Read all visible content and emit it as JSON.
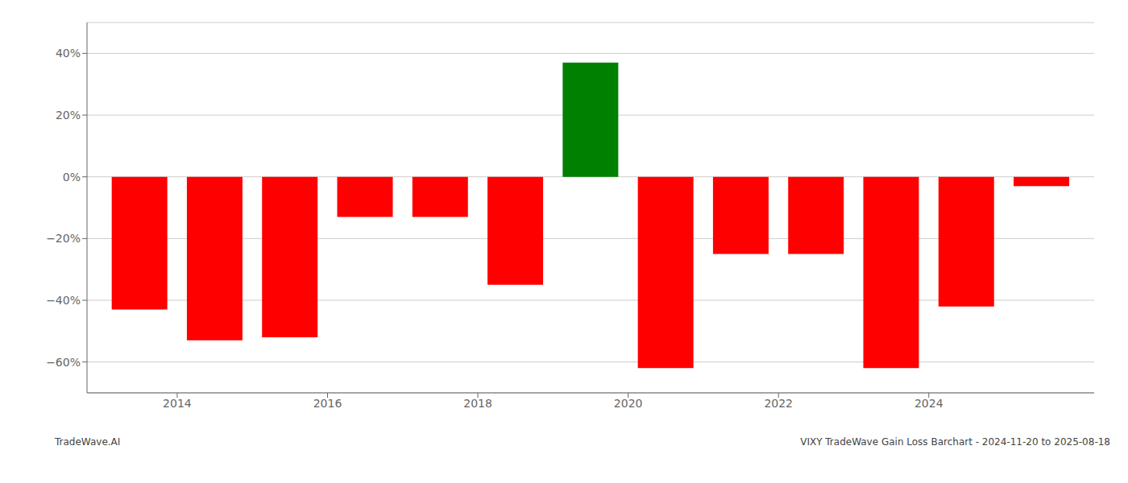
{
  "chart_data": {
    "type": "bar",
    "x": [
      2013,
      2014,
      2015,
      2016,
      2017,
      2018,
      2019,
      2020,
      2021,
      2022,
      2023,
      2024,
      2025
    ],
    "values": [
      -43,
      -53,
      -52,
      -13,
      -13,
      -35,
      37,
      -62,
      -25,
      -25,
      -62,
      -42,
      -3
    ],
    "colors": [
      "#ff0000",
      "#ff0000",
      "#ff0000",
      "#ff0000",
      "#ff0000",
      "#ff0000",
      "#008000",
      "#ff0000",
      "#ff0000",
      "#ff0000",
      "#ff0000",
      "#ff0000",
      "#ff0000"
    ],
    "xlim": [
      2012.3,
      2025.7
    ],
    "xticks": [
      {
        "value": 2013.5,
        "label": "2014"
      },
      {
        "value": 2015.5,
        "label": "2016"
      },
      {
        "value": 2017.5,
        "label": "2018"
      },
      {
        "value": 2019.5,
        "label": "2020"
      },
      {
        "value": 2021.5,
        "label": "2022"
      },
      {
        "value": 2023.5,
        "label": "2024"
      }
    ],
    "ylim": [
      -70,
      50
    ],
    "yticks": [
      {
        "value": -60,
        "label": "−60%"
      },
      {
        "value": -40,
        "label": "−40%"
      },
      {
        "value": -20,
        "label": "−20%"
      },
      {
        "value": 0,
        "label": "0%"
      },
      {
        "value": 20,
        "label": "20%"
      },
      {
        "value": 40,
        "label": "40%"
      }
    ],
    "grid": true,
    "annotations": [
      "TradeWave.AI",
      "VIXY TradeWave Gain Loss Barchart - 2024-11-20 to 2025-08-18"
    ]
  }
}
